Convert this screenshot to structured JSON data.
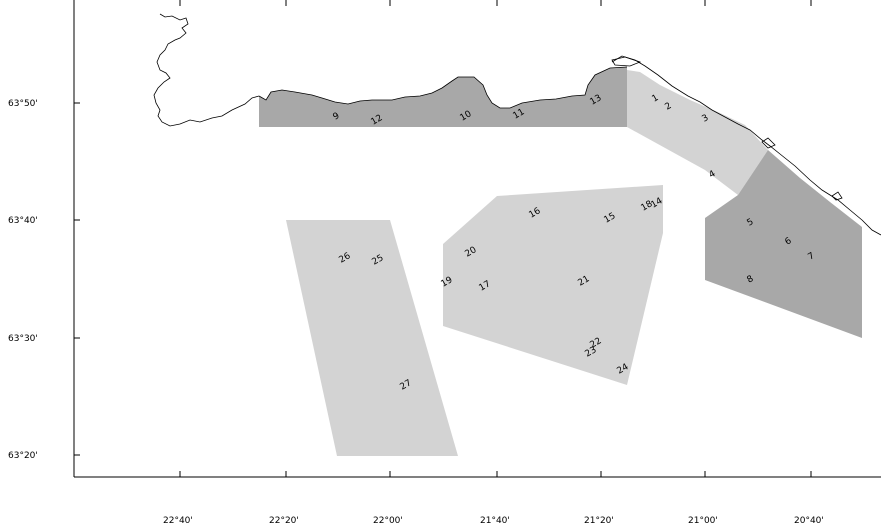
{
  "map": {
    "lat_labels": [
      "63°50'",
      "63°40'",
      "63°30'",
      "63°20'"
    ],
    "lon_labels": [
      "22°40'",
      "22°20'",
      "22°00'",
      "21°40'",
      "21°20'",
      "21°00'",
      "20°40'"
    ],
    "colors": {
      "dark_area": "#a8a8a8",
      "light_area": "#d3d3d3",
      "coastline": "#000000",
      "frame": "#000000",
      "background": "#ffffff"
    },
    "sites": [
      "1",
      "2",
      "3",
      "4",
      "5",
      "6",
      "7",
      "8",
      "9",
      "10",
      "11",
      "12",
      "13",
      "14",
      "15",
      "16",
      "17",
      "18",
      "19",
      "20",
      "21",
      "22",
      "23",
      "24",
      "25",
      "26",
      "27"
    ]
  }
}
